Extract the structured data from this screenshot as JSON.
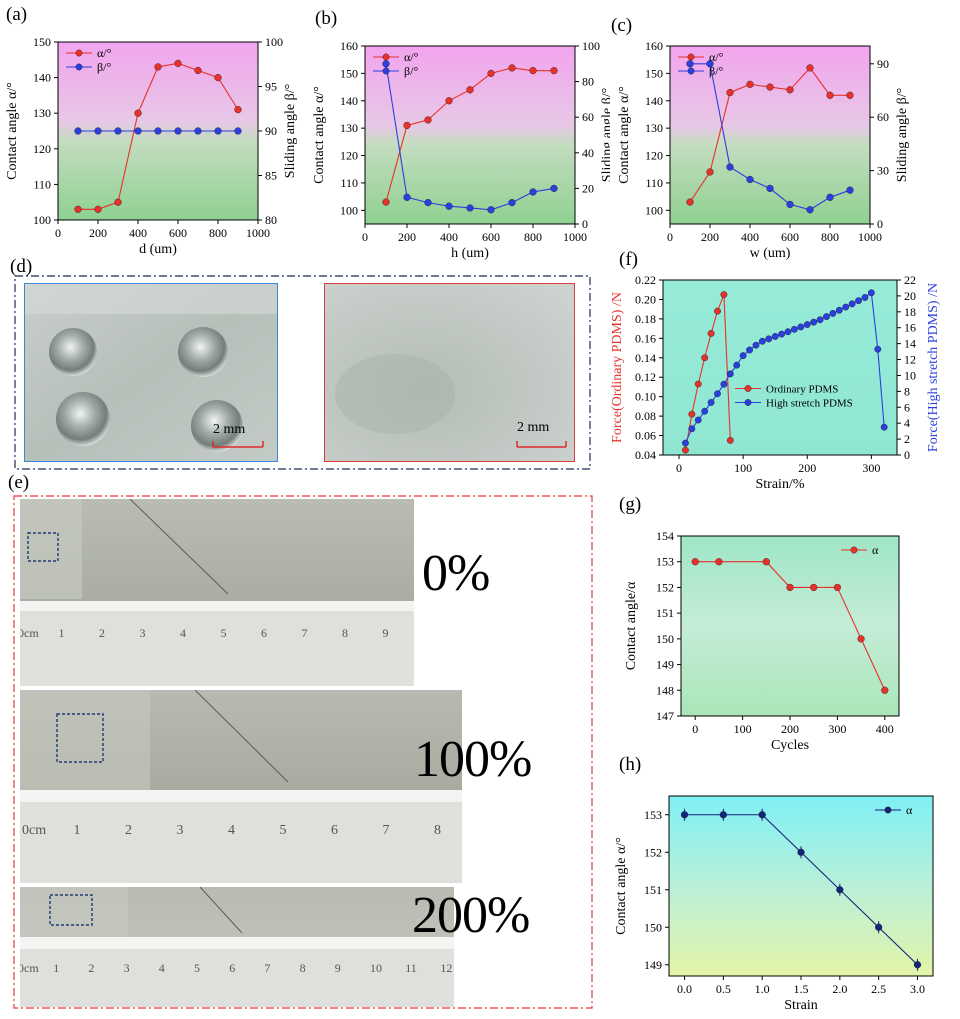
{
  "panels": {
    "a": "(a)",
    "b": "(b)",
    "c": "(c)",
    "d": "(d)",
    "e": "(e)",
    "f": "(f)",
    "g": "(g)",
    "h": "(h)"
  },
  "photo_d": {
    "scale_left": "2 mm",
    "scale_right": "2 mm"
  },
  "photo_e": {
    "labels": [
      "0%",
      "100%",
      "200%"
    ],
    "ruler_row1": [
      "0cm",
      "1",
      "2",
      "3",
      "4",
      "5",
      "6",
      "7",
      "8",
      "9"
    ],
    "ruler_row2": [
      "0cm",
      "1",
      "2",
      "3",
      "4",
      "5",
      "6",
      "7",
      "8"
    ],
    "ruler_row3": [
      "0cm",
      "1",
      "2",
      "3",
      "4",
      "5",
      "6",
      "7",
      "8",
      "9",
      "10",
      "11",
      "12"
    ]
  },
  "colors": {
    "red": "#e8312a",
    "blue": "#2b3fe0",
    "navy": "#14247a",
    "frame_blue": "#3b89d6",
    "frame_red": "#e03a3a"
  },
  "chart_data": [
    {
      "id": "a",
      "type": "line",
      "xlabel": "d (um)",
      "ylabel": "Contact angle α/°",
      "y2label": "Sliding angle β/°",
      "xlim": [
        0,
        1000
      ],
      "ylim": [
        100,
        150
      ],
      "y2lim": [
        80,
        100
      ],
      "xticks": [
        0,
        200,
        400,
        600,
        800,
        1000
      ],
      "yticks": [
        100,
        110,
        120,
        130,
        140,
        150
      ],
      "y2ticks": [
        80,
        85,
        90,
        95,
        100
      ],
      "legend_position": "top-left",
      "series": [
        {
          "name": "α/°",
          "axis": "left",
          "color": "#e8312a",
          "x": [
            100,
            200,
            300,
            400,
            500,
            600,
            700,
            800,
            900
          ],
          "y": [
            103,
            103,
            105,
            130,
            143,
            144,
            142,
            140,
            131
          ]
        },
        {
          "name": "β/°",
          "axis": "right",
          "color": "#2b3fe0",
          "x": [
            100,
            200,
            300,
            400,
            500,
            600,
            700,
            800,
            900
          ],
          "y": [
            90,
            90,
            90,
            90,
            90,
            90,
            90,
            90,
            90
          ]
        }
      ]
    },
    {
      "id": "b",
      "type": "line",
      "xlabel": "h (um)",
      "ylabel": "Contact angle α/°",
      "y2label": "Sliding angle β/°",
      "xlim": [
        0,
        1000
      ],
      "ylim": [
        95,
        160
      ],
      "y2lim": [
        0,
        100
      ],
      "xticks": [
        0,
        200,
        400,
        600,
        800,
        1000
      ],
      "yticks": [
        100,
        110,
        120,
        130,
        140,
        150,
        160
      ],
      "y2ticks": [
        0,
        20,
        40,
        60,
        80,
        100
      ],
      "legend_position": "top-left",
      "series": [
        {
          "name": "α/°",
          "axis": "left",
          "color": "#e8312a",
          "x": [
            100,
            200,
            300,
            400,
            500,
            600,
            700,
            800,
            900
          ],
          "y": [
            103,
            131,
            133,
            140,
            144,
            150,
            152,
            151,
            151
          ]
        },
        {
          "name": "β/°",
          "axis": "right",
          "color": "#2b3fe0",
          "x": [
            100,
            200,
            300,
            400,
            500,
            600,
            700,
            800,
            900
          ],
          "y": [
            90,
            15,
            12,
            10,
            9,
            8,
            12,
            18,
            20
          ]
        }
      ]
    },
    {
      "id": "c",
      "type": "line",
      "xlabel": "w (um)",
      "ylabel": "Contact angle α/°",
      "y2label": "Sliding angle β/°",
      "xlim": [
        0,
        1000
      ],
      "ylim": [
        95,
        160
      ],
      "y2lim": [
        0,
        100
      ],
      "xticks": [
        0,
        200,
        400,
        600,
        800,
        1000
      ],
      "yticks": [
        100,
        110,
        120,
        130,
        140,
        150,
        160
      ],
      "y2ticks": [
        0,
        30,
        60,
        90
      ],
      "legend_position": "top-left",
      "series": [
        {
          "name": "α/°",
          "axis": "left",
          "color": "#e8312a",
          "x": [
            100,
            200,
            300,
            400,
            500,
            600,
            700,
            800,
            900
          ],
          "y": [
            103,
            114,
            143,
            146,
            145,
            144,
            152,
            142,
            142
          ]
        },
        {
          "name": "β/°",
          "axis": "right",
          "color": "#2b3fe0",
          "x": [
            100,
            200,
            300,
            400,
            500,
            600,
            700,
            800,
            900
          ],
          "y": [
            90,
            90,
            32,
            25,
            20,
            11,
            8,
            15,
            19
          ]
        }
      ]
    },
    {
      "id": "f",
      "type": "line",
      "xlabel": "Strain/%",
      "ylabel": "Force(Ordinary PDMS) /N",
      "y2label": "Force(High stretch PDMS) /N",
      "xlim": [
        -25,
        340
      ],
      "ylim": [
        0.04,
        0.22
      ],
      "y2lim": [
        0,
        22
      ],
      "xticks": [
        0,
        100,
        200,
        300
      ],
      "yticks": [
        0.04,
        0.06,
        0.08,
        0.1,
        0.12,
        0.14,
        0.16,
        0.18,
        0.2,
        0.22
      ],
      "y2ticks": [
        0,
        2,
        4,
        6,
        8,
        10,
        12,
        14,
        16,
        18,
        20,
        22
      ],
      "legend_position": "center-right",
      "series": [
        {
          "name": "Ordinary PDMS",
          "axis": "left",
          "color": "#e8312a",
          "x": [
            10,
            20,
            30,
            40,
            50,
            60,
            70,
            80
          ],
          "y": [
            0.045,
            0.082,
            0.113,
            0.14,
            0.165,
            0.188,
            0.205,
            0.055
          ]
        },
        {
          "name": "High stretch PDMS",
          "axis": "right",
          "color": "#2b3fe0",
          "x": [
            10,
            20,
            30,
            40,
            50,
            60,
            70,
            80,
            90,
            100,
            110,
            120,
            130,
            140,
            150,
            160,
            170,
            180,
            190,
            200,
            210,
            220,
            230,
            240,
            250,
            260,
            270,
            280,
            290,
            300,
            310,
            320
          ],
          "y": [
            1.5,
            3.3,
            4.4,
            5.5,
            6.6,
            7.7,
            8.9,
            10.2,
            11.3,
            12.5,
            13.2,
            13.8,
            14.3,
            14.6,
            14.9,
            15.2,
            15.5,
            15.8,
            16.1,
            16.4,
            16.7,
            17.0,
            17.4,
            17.8,
            18.2,
            18.6,
            19.0,
            19.4,
            19.8,
            20.4,
            13.3,
            3.5
          ]
        }
      ]
    },
    {
      "id": "g",
      "type": "line",
      "xlabel": "Cycles",
      "ylabel": "Contact angle/α",
      "xlim": [
        -30,
        430
      ],
      "ylim": [
        147,
        154
      ],
      "xticks": [
        0,
        100,
        200,
        300,
        400
      ],
      "yticks": [
        147,
        148,
        149,
        150,
        151,
        152,
        153,
        154
      ],
      "legend_position": "top-right",
      "series": [
        {
          "name": "α",
          "axis": "left",
          "color": "#e8312a",
          "x": [
            0,
            50,
            150,
            200,
            250,
            300,
            350,
            400
          ],
          "y": [
            153,
            153,
            153,
            152,
            152,
            152,
            150,
            148
          ]
        }
      ]
    },
    {
      "id": "h",
      "type": "line",
      "xlabel": "Strain",
      "ylabel": "Contact angle α/°",
      "xlim": [
        -0.2,
        3.2
      ],
      "ylim": [
        148.7,
        153.5
      ],
      "xticks": [
        0.0,
        0.5,
        1.0,
        1.5,
        2.0,
        2.5,
        3.0
      ],
      "yticks": [
        149,
        150,
        151,
        152,
        153
      ],
      "xticklabels": [
        "0.0",
        "0.5",
        "1.0",
        "1.5",
        "2.0",
        "2.5",
        "3.0"
      ],
      "legend_position": "top-right",
      "series": [
        {
          "name": "α",
          "axis": "left",
          "color": "#14247a",
          "x": [
            0.0,
            0.5,
            1.0,
            1.5,
            2.0,
            2.5,
            3.0
          ],
          "y": [
            153,
            153,
            153,
            152,
            151,
            150,
            149
          ]
        }
      ]
    }
  ]
}
